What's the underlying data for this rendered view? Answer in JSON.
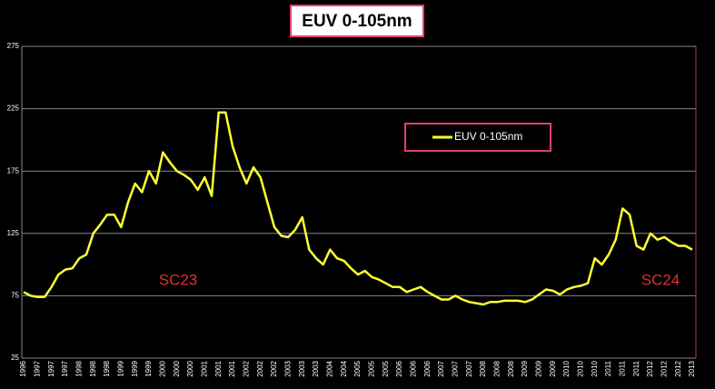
{
  "chart_data": {
    "type": "line",
    "title": "EUV 0-105nm",
    "categories": [
      "1996",
      null,
      "1997",
      null,
      "1997",
      null,
      "1997",
      null,
      "1998",
      null,
      "1998",
      null,
      "1998",
      null,
      "1999",
      null,
      "1999",
      null,
      "1999",
      null,
      "2000",
      null,
      "2000",
      null,
      "2000",
      null,
      "2001",
      null,
      "2001",
      null,
      "2001",
      null,
      "2002",
      null,
      "2002",
      null,
      "2002",
      null,
      "2003",
      null,
      "2003",
      null,
      "2003",
      null,
      "2004",
      null,
      "2004",
      null,
      "2005",
      null,
      "2005",
      null,
      "2005",
      null,
      "2006",
      null,
      "2006",
      null,
      "2006",
      null,
      "2007",
      null,
      "2007",
      null,
      "2007",
      null,
      "2008",
      null,
      "2008",
      null,
      "2008",
      null,
      "2009",
      null,
      "2009",
      null,
      "2009",
      null,
      "2010",
      null,
      "2010",
      null,
      "2010",
      null,
      "2011",
      null,
      "2011",
      null,
      "2011",
      null,
      "2012",
      null,
      "2012",
      null,
      "2012",
      null,
      "2013"
    ],
    "series": [
      {
        "name": "EUV 0-105nm",
        "color": "#ffff33",
        "values": [
          78,
          75,
          74,
          74,
          82,
          92,
          96,
          97,
          105,
          108,
          125,
          132,
          140,
          140,
          130,
          150,
          165,
          158,
          175,
          165,
          190,
          182,
          175,
          172,
          168,
          160,
          170,
          155,
          222,
          222,
          195,
          178,
          165,
          178,
          170,
          150,
          130,
          123,
          122,
          128,
          138,
          112,
          105,
          100,
          112,
          105,
          103,
          97,
          92,
          95,
          90,
          88,
          85,
          82,
          82,
          78,
          80,
          82,
          78,
          75,
          72,
          72,
          75,
          72,
          70,
          69,
          68,
          70,
          70,
          71,
          71,
          71,
          70,
          72,
          76,
          80,
          79,
          76,
          80,
          82,
          83,
          85,
          105,
          100,
          108,
          120,
          145,
          140,
          115,
          112,
          125,
          120,
          122,
          118,
          115,
          115,
          112
        ]
      }
    ],
    "ylim": [
      25,
      275
    ],
    "yticks": [
      25,
      75,
      125,
      175,
      225,
      275
    ],
    "grid": true,
    "legend": "top-right",
    "annotations": [
      "SC23",
      "SC24"
    ]
  }
}
